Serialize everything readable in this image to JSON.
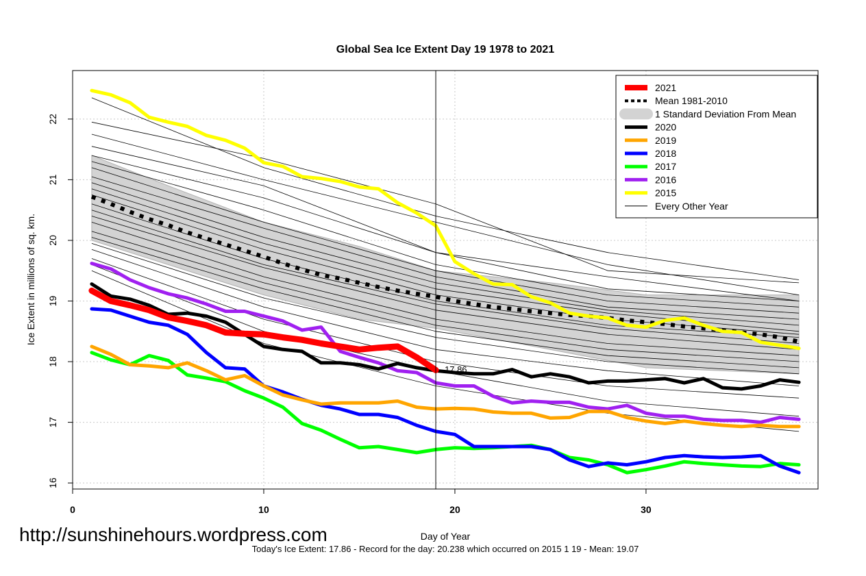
{
  "chart_data": {
    "type": "line",
    "title": "Global Sea Ice Extent Day 19 1978 to 2021",
    "xlabel": "Day of Year",
    "ylabel": "Ice Extent in millions of sq. km.",
    "xlim": [
      0,
      39
    ],
    "ylim": [
      15.9,
      22.8
    ],
    "x_ticks": [
      "0",
      "10",
      "20",
      "30"
    ],
    "y_ticks": [
      "16",
      "17",
      "18",
      "19",
      "20",
      "21",
      "22"
    ],
    "grid": true,
    "legend_position": "top-right",
    "current_day_marker": 19,
    "annotation": {
      "text": "17.86",
      "x": 19,
      "y": 17.86,
      "color": "#ff0000"
    },
    "footer": "Today's Ice Extent: 17.86  - Record for the day: 20.238 which occurred on 2015 1 19  - Mean: 19.07",
    "watermark": "http://sunshinehours.wordpress.com",
    "band": {
      "name": "1 Standard Deviation From Mean",
      "color": "#d3d3d3",
      "x": [
        1,
        5,
        10,
        15,
        19,
        25,
        30,
        38
      ],
      "upper": [
        21.4,
        20.9,
        20.3,
        19.9,
        19.5,
        19.3,
        19.1,
        19.1
      ],
      "lower": [
        20.0,
        19.6,
        19.1,
        18.7,
        18.55,
        18.2,
        17.9,
        17.8
      ]
    },
    "series": [
      {
        "name": "2021",
        "color": "#ff0000",
        "width": 9,
        "x": [
          1,
          2,
          3,
          4,
          5,
          6,
          7,
          8,
          9,
          10,
          11,
          12,
          13,
          14,
          15,
          16,
          17,
          18,
          19
        ],
        "values": [
          19.17,
          19.0,
          18.93,
          18.85,
          18.73,
          18.67,
          18.6,
          18.48,
          18.46,
          18.45,
          18.4,
          18.36,
          18.3,
          18.25,
          18.2,
          18.23,
          18.25,
          18.07,
          17.86
        ]
      },
      {
        "name": "2020",
        "color": "#000000",
        "width": 5,
        "x": [
          1,
          2,
          3,
          4,
          5,
          6,
          7,
          8,
          9,
          10,
          11,
          12,
          13,
          14,
          15,
          16,
          17,
          18,
          19,
          20,
          21,
          22,
          23,
          24,
          25,
          26,
          27,
          28,
          29,
          30,
          31,
          32,
          33,
          34,
          35,
          36,
          37,
          38
        ],
        "values": [
          19.28,
          19.08,
          19.03,
          18.93,
          18.78,
          18.8,
          18.75,
          18.65,
          18.45,
          18.25,
          18.2,
          18.17,
          17.98,
          17.98,
          17.95,
          17.88,
          17.97,
          17.9,
          17.85,
          17.82,
          17.8,
          17.8,
          17.87,
          17.75,
          17.8,
          17.75,
          17.65,
          17.68,
          17.68,
          17.7,
          17.72,
          17.65,
          17.72,
          17.57,
          17.55,
          17.6,
          17.7,
          17.66
        ]
      },
      {
        "name": "2019",
        "color": "#ffa500",
        "width": 5,
        "x": [
          1,
          2,
          3,
          4,
          5,
          6,
          7,
          8,
          9,
          10,
          11,
          12,
          13,
          14,
          15,
          16,
          17,
          18,
          19,
          20,
          21,
          22,
          23,
          24,
          25,
          26,
          27,
          28,
          29,
          30,
          31,
          32,
          33,
          34,
          35,
          36,
          37,
          38
        ],
        "values": [
          18.25,
          18.12,
          17.95,
          17.93,
          17.9,
          17.98,
          17.85,
          17.7,
          17.77,
          17.6,
          17.45,
          17.37,
          17.3,
          17.32,
          17.32,
          17.32,
          17.35,
          17.25,
          17.22,
          17.23,
          17.22,
          17.17,
          17.15,
          17.15,
          17.07,
          17.08,
          17.18,
          17.18,
          17.08,
          17.02,
          16.98,
          17.02,
          16.98,
          16.95,
          16.93,
          16.95,
          16.93,
          16.93
        ]
      },
      {
        "name": "2018",
        "color": "#0000ff",
        "width": 5,
        "x": [
          1,
          2,
          3,
          4,
          5,
          6,
          7,
          8,
          9,
          10,
          11,
          12,
          13,
          14,
          15,
          16,
          17,
          18,
          19,
          20,
          21,
          22,
          23,
          24,
          25,
          26,
          27,
          28,
          29,
          30,
          31,
          32,
          33,
          34,
          35,
          36,
          37,
          38
        ],
        "values": [
          18.87,
          18.85,
          18.75,
          18.65,
          18.6,
          18.45,
          18.15,
          17.9,
          17.88,
          17.6,
          17.5,
          17.38,
          17.28,
          17.22,
          17.13,
          17.13,
          17.08,
          16.95,
          16.85,
          16.8,
          16.6,
          16.6,
          16.6,
          16.6,
          16.55,
          16.38,
          16.27,
          16.33,
          16.3,
          16.35,
          16.42,
          16.45,
          16.43,
          16.42,
          16.43,
          16.45,
          16.28,
          16.17
        ]
      },
      {
        "name": "2017",
        "color": "#00ff00",
        "width": 5,
        "x": [
          1,
          2,
          3,
          4,
          5,
          6,
          7,
          8,
          9,
          10,
          11,
          12,
          13,
          14,
          15,
          16,
          17,
          18,
          19,
          20,
          21,
          22,
          23,
          24,
          25,
          26,
          27,
          28,
          29,
          30,
          31,
          32,
          33,
          34,
          35,
          36,
          37,
          38
        ],
        "values": [
          18.15,
          18.03,
          17.95,
          18.1,
          18.02,
          17.78,
          17.73,
          17.67,
          17.52,
          17.4,
          17.25,
          16.98,
          16.87,
          16.72,
          16.58,
          16.6,
          16.55,
          16.5,
          16.55,
          16.58,
          16.57,
          16.58,
          16.6,
          16.62,
          16.55,
          16.42,
          16.38,
          16.3,
          16.17,
          16.22,
          16.28,
          16.35,
          16.32,
          16.3,
          16.28,
          16.27,
          16.32,
          16.3
        ]
      },
      {
        "name": "2016",
        "color": "#a020f0",
        "width": 5,
        "x": [
          1,
          2,
          3,
          4,
          5,
          6,
          7,
          8,
          9,
          10,
          11,
          12,
          13,
          14,
          15,
          16,
          17,
          18,
          19,
          20,
          21,
          22,
          23,
          24,
          25,
          26,
          27,
          28,
          29,
          30,
          31,
          32,
          33,
          34,
          35,
          36,
          37,
          38
        ],
        "values": [
          19.62,
          19.53,
          19.35,
          19.22,
          19.12,
          19.05,
          18.95,
          18.83,
          18.83,
          18.75,
          18.67,
          18.52,
          18.57,
          18.17,
          18.07,
          17.98,
          17.85,
          17.82,
          17.65,
          17.6,
          17.6,
          17.43,
          17.32,
          17.35,
          17.33,
          17.33,
          17.25,
          17.22,
          17.28,
          17.15,
          17.1,
          17.1,
          17.05,
          17.03,
          17.03,
          17.0,
          17.08,
          17.05
        ]
      },
      {
        "name": "2015",
        "color": "#ffff00",
        "width": 5,
        "x": [
          1,
          2,
          3,
          4,
          5,
          6,
          7,
          8,
          9,
          10,
          11,
          12,
          13,
          14,
          15,
          16,
          17,
          18,
          19,
          20,
          21,
          22,
          23,
          24,
          25,
          26,
          27,
          28,
          29,
          30,
          31,
          32,
          33,
          34,
          35,
          36,
          37,
          38
        ],
        "values": [
          22.47,
          22.4,
          22.27,
          22.03,
          21.95,
          21.88,
          21.73,
          21.65,
          21.52,
          21.28,
          21.22,
          21.05,
          21.02,
          20.97,
          20.88,
          20.85,
          20.62,
          20.45,
          20.24,
          19.65,
          19.45,
          19.28,
          19.27,
          19.07,
          18.97,
          18.8,
          18.75,
          18.72,
          18.6,
          18.57,
          18.68,
          18.72,
          18.6,
          18.5,
          18.48,
          18.32,
          18.27,
          18.22
        ]
      },
      {
        "name": "Mean 1981-2010",
        "color": "#000000",
        "width": 6,
        "dashed": true,
        "x": [
          1,
          2,
          3,
          4,
          5,
          6,
          7,
          8,
          9,
          10,
          11,
          12,
          13,
          14,
          15,
          16,
          17,
          18,
          19,
          20,
          21,
          22,
          23,
          24,
          25,
          26,
          27,
          28,
          29,
          30,
          31,
          32,
          33,
          34,
          35,
          36,
          37,
          38
        ],
        "values": [
          20.72,
          20.6,
          20.47,
          20.35,
          20.25,
          20.13,
          20.03,
          19.93,
          19.83,
          19.73,
          19.62,
          19.52,
          19.43,
          19.37,
          19.3,
          19.23,
          19.17,
          19.12,
          19.07,
          19.0,
          18.95,
          18.9,
          18.87,
          18.83,
          18.8,
          18.77,
          18.75,
          18.72,
          18.68,
          18.65,
          18.62,
          18.58,
          18.55,
          18.52,
          18.48,
          18.45,
          18.4,
          18.33
        ]
      },
      {
        "name": "Every Other Year",
        "color": "#000000",
        "width": 1,
        "group": "other",
        "x": [
          1,
          10,
          19,
          28,
          38
        ],
        "values_by_year": [
          [
            22.35,
            21.2,
            20.4,
            19.8,
            19.35
          ],
          [
            21.95,
            21.35,
            20.6,
            19.5,
            19.3
          ],
          [
            21.75,
            21.0,
            20.3,
            19.6,
            19.1
          ],
          [
            21.55,
            20.9,
            19.8,
            19.4,
            19.0
          ],
          [
            21.4,
            20.7,
            19.8,
            19.2,
            19.0
          ],
          [
            21.3,
            20.5,
            19.6,
            19.1,
            18.9
          ],
          [
            21.2,
            20.3,
            19.5,
            19.0,
            18.8
          ],
          [
            21.05,
            20.2,
            19.4,
            18.9,
            18.7
          ],
          [
            20.95,
            20.05,
            19.3,
            18.85,
            18.6
          ],
          [
            20.85,
            19.95,
            19.2,
            18.8,
            18.5
          ],
          [
            20.75,
            19.85,
            19.1,
            18.7,
            18.45
          ],
          [
            20.6,
            19.7,
            19.0,
            18.6,
            18.4
          ],
          [
            20.5,
            19.6,
            18.95,
            18.55,
            18.3
          ],
          [
            20.4,
            19.55,
            18.85,
            18.45,
            18.2
          ],
          [
            20.3,
            19.4,
            18.7,
            18.3,
            18.1
          ],
          [
            20.15,
            19.3,
            18.6,
            18.2,
            18.0
          ],
          [
            20.05,
            19.2,
            18.5,
            18.1,
            17.9
          ],
          [
            19.95,
            19.05,
            18.4,
            18.0,
            17.8
          ],
          [
            19.85,
            18.9,
            18.2,
            17.85,
            17.6
          ],
          [
            19.7,
            18.7,
            18.0,
            17.6,
            17.4
          ],
          [
            19.6,
            18.5,
            17.85,
            17.35,
            17.1
          ],
          [
            19.5,
            18.3,
            17.6,
            17.15,
            16.85
          ]
        ]
      }
    ]
  }
}
